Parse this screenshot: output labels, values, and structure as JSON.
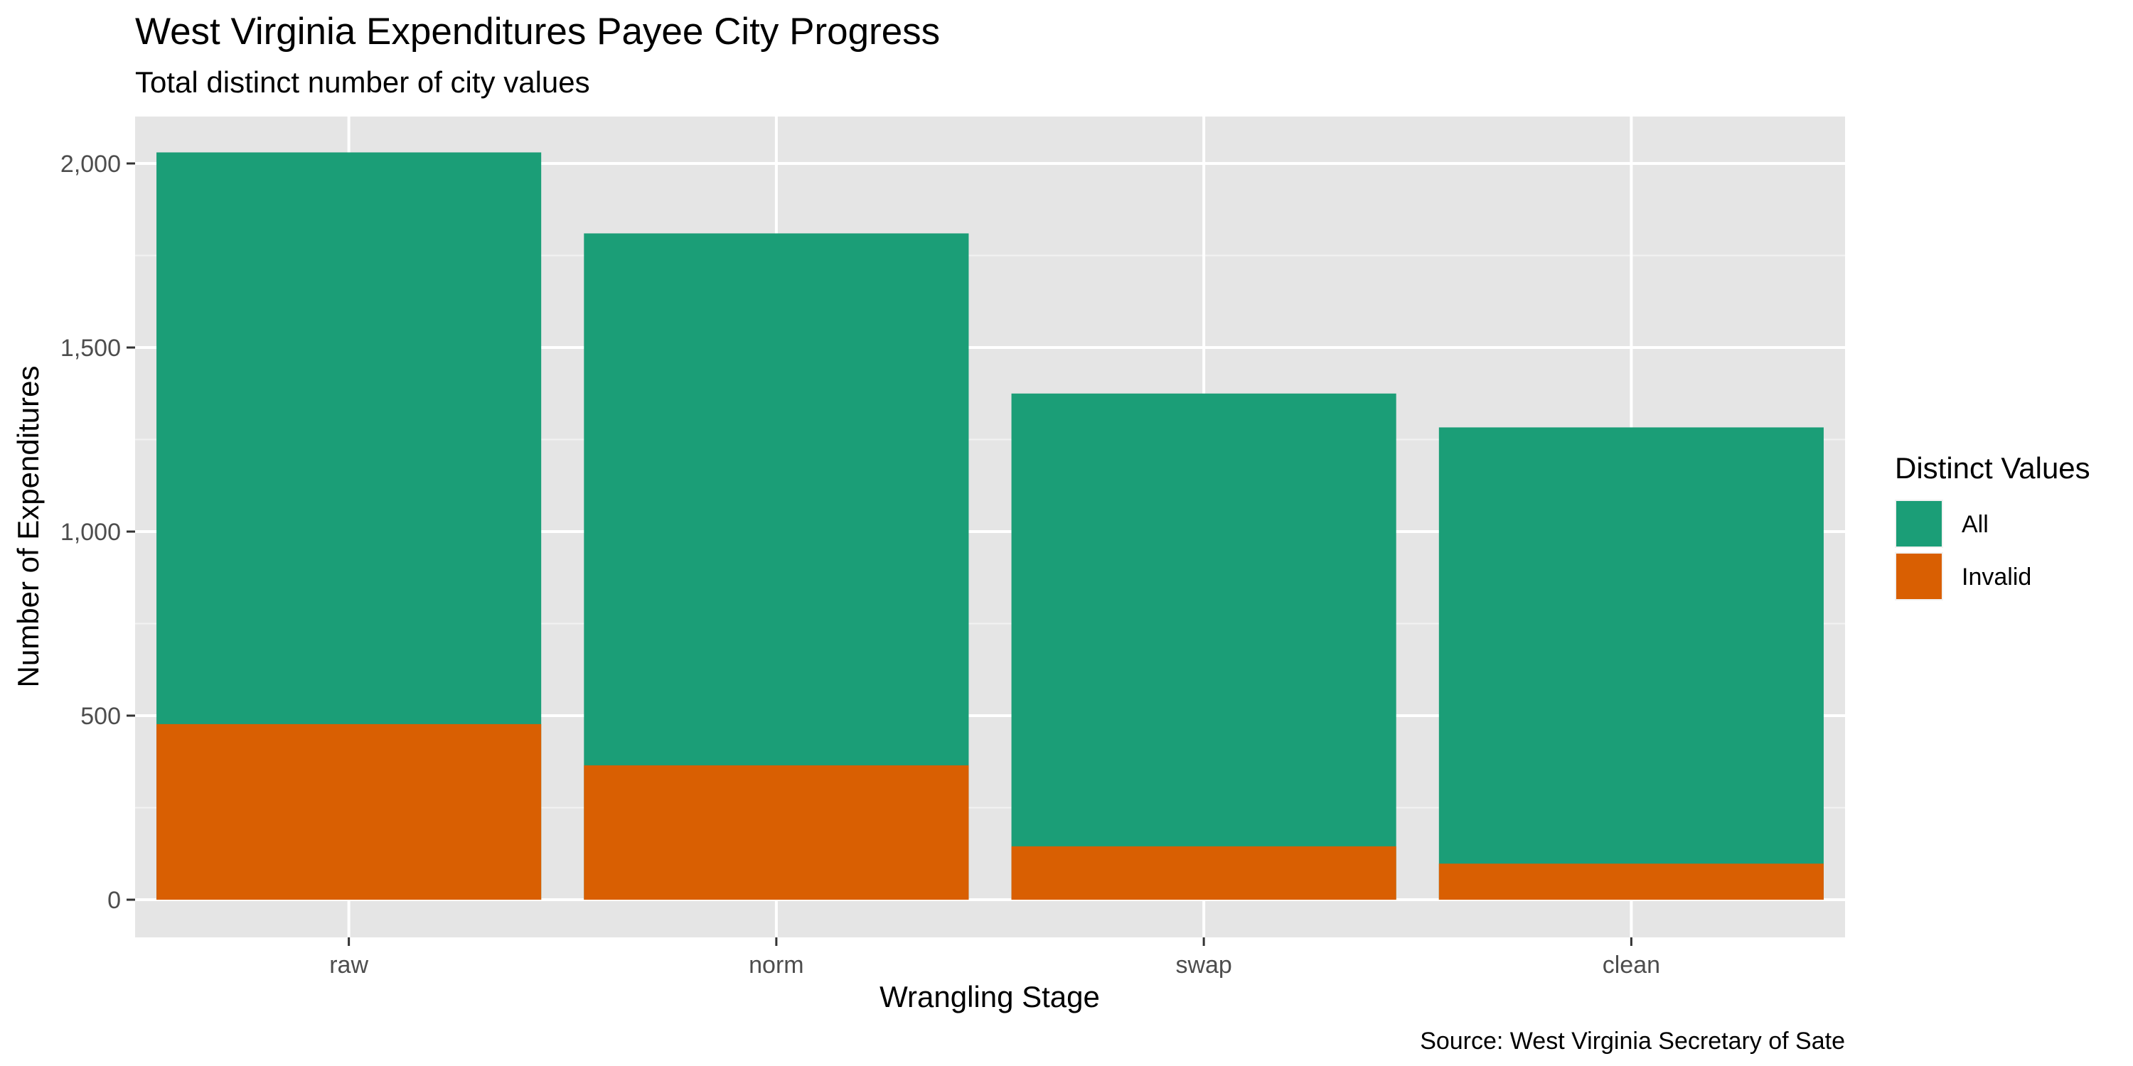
{
  "chart_data": {
    "type": "bar",
    "stacked": false,
    "title": "West Virginia Expenditures Payee City Progress",
    "subtitle": "Total distinct number of city values",
    "xlabel": "Wrangling Stage",
    "ylabel": "Number of Expenditures",
    "caption": "Source: West Virginia Secretary of Sate",
    "categories": [
      "raw",
      "norm",
      "swap",
      "clean"
    ],
    "series": [
      {
        "name": "All",
        "color": "#1b9e77",
        "values": [
          2030,
          1810,
          1375,
          1283
        ]
      },
      {
        "name": "Invalid",
        "color": "#d95f02",
        "values": [
          477,
          365,
          145,
          98
        ]
      }
    ],
    "ylim": [
      0,
      2100
    ],
    "yticks": [
      0,
      500,
      1000,
      1500,
      2000
    ],
    "ytick_labels": [
      "0",
      "500",
      "1,000",
      "1,500",
      "2,000"
    ],
    "legend": {
      "title": "Distinct Values",
      "position": "right"
    },
    "grid": true,
    "panel_background": "#e5e5e5"
  }
}
